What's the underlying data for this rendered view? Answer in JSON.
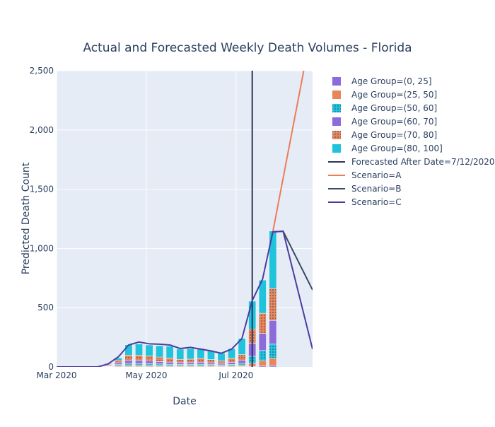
{
  "chart_data": {
    "type": "bar",
    "title": "Actual and Forecasted Weekly Death Volumes - Florida",
    "xlabel": "Date",
    "ylabel": "Predicted Death Count",
    "ylim": [
      0,
      2500
    ],
    "xlim": [
      "2020-03-01",
      "2020-08-22"
    ],
    "xticks": [
      {
        "date": "2020-03-01",
        "label": "Mar 2020"
      },
      {
        "date": "2020-05-01",
        "label": "May 2020"
      },
      {
        "date": "2020-07-01",
        "label": "Jul 2020"
      }
    ],
    "yticks": [
      0,
      500,
      1000,
      1500,
      2000,
      2500
    ],
    "ytick_labels": [
      "0",
      "500",
      "1,000",
      "1,500",
      "2,000",
      "2,500"
    ],
    "grid": true,
    "legend_position": "right",
    "x": [
      "2020-03-01",
      "2020-03-08",
      "2020-03-15",
      "2020-03-22",
      "2020-03-29",
      "2020-04-05",
      "2020-04-12",
      "2020-04-19",
      "2020-04-26",
      "2020-05-03",
      "2020-05-10",
      "2020-05-17",
      "2020-05-24",
      "2020-05-31",
      "2020-06-07",
      "2020-06-14",
      "2020-06-21",
      "2020-06-28",
      "2020-07-05",
      "2020-07-12",
      "2020-07-19",
      "2020-07-26"
    ],
    "series": [
      {
        "name": "Age Group=(0, 25]",
        "color": "#8c6bdc",
        "pattern": "solid",
        "values": [
          0,
          0,
          0,
          0,
          0,
          1,
          2,
          2,
          2,
          2,
          2,
          2,
          2,
          2,
          2,
          2,
          2,
          2,
          3,
          5,
          8,
          12
        ]
      },
      {
        "name": "Age Group=(25, 50]",
        "color": "#e8865a",
        "pattern": "solid",
        "values": [
          0,
          0,
          0,
          0,
          0,
          3,
          8,
          12,
          12,
          11,
          10,
          9,
          8,
          8,
          9,
          8,
          7,
          9,
          12,
          25,
          45,
          60
        ]
      },
      {
        "name": "Age Group=(50, 60]",
        "color": "#1fc3dc",
        "pattern": "dots",
        "values": [
          0,
          0,
          0,
          0,
          0,
          4,
          10,
          15,
          15,
          14,
          13,
          12,
          11,
          11,
          12,
          10,
          9,
          11,
          15,
          60,
          85,
          120
        ]
      },
      {
        "name": "Age Group=(60, 70]",
        "color": "#8c6bdc",
        "pattern": "solid",
        "values": [
          0,
          0,
          0,
          0,
          0,
          6,
          15,
          25,
          25,
          23,
          20,
          18,
          15,
          15,
          17,
          14,
          12,
          16,
          25,
          110,
          145,
          200
        ]
      },
      {
        "name": "Age Group=(70, 80]",
        "color": "#e8865a",
        "pattern": "dots",
        "values": [
          0,
          0,
          0,
          0,
          0,
          8,
          20,
          45,
          45,
          42,
          38,
          34,
          28,
          30,
          32,
          28,
          22,
          34,
          50,
          120,
          170,
          270
        ]
      },
      {
        "name": "Age Group=(80, 100]",
        "color": "#1fc3dc",
        "pattern": "solid",
        "values": [
          0,
          0,
          0,
          0,
          0,
          7,
          20,
          88,
          95,
          93,
          96,
          100,
          86,
          89,
          84,
          73,
          63,
          83,
          135,
          235,
          280,
          485
        ]
      }
    ],
    "lines": [
      {
        "name": "Forecasted After Date=7/12/2020",
        "color": "#2c3557",
        "type": "vline",
        "x": "2020-07-12",
        "y": [
          0,
          2500
        ]
      },
      {
        "name": "Scenario=A",
        "color": "#ee7b5a",
        "x": [
          "2020-07-26",
          "2020-08-16"
        ],
        "y": [
          1140,
          2500
        ]
      },
      {
        "name": "Scenario=B",
        "color": "#3a4a63",
        "x": [
          "2020-07-26",
          "2020-08-02",
          "2020-08-22"
        ],
        "y": [
          1140,
          1145,
          650
        ]
      },
      {
        "name": "Scenario=C",
        "color": "#4d3ca0",
        "x": [
          "2020-03-01",
          "2020-03-08",
          "2020-03-15",
          "2020-03-22",
          "2020-03-29",
          "2020-04-05",
          "2020-04-12",
          "2020-04-19",
          "2020-04-26",
          "2020-05-03",
          "2020-05-10",
          "2020-05-17",
          "2020-05-24",
          "2020-05-31",
          "2020-06-07",
          "2020-06-14",
          "2020-06-21",
          "2020-06-28",
          "2020-07-05",
          "2020-07-12",
          "2020-07-19",
          "2020-07-26",
          "2020-08-02",
          "2020-08-22"
        ],
        "y": [
          0,
          0,
          0,
          0,
          0,
          25,
          85,
          185,
          210,
          195,
          192,
          185,
          155,
          165,
          150,
          135,
          115,
          150,
          240,
          560,
          740,
          1140,
          1145,
          150
        ]
      }
    ]
  }
}
